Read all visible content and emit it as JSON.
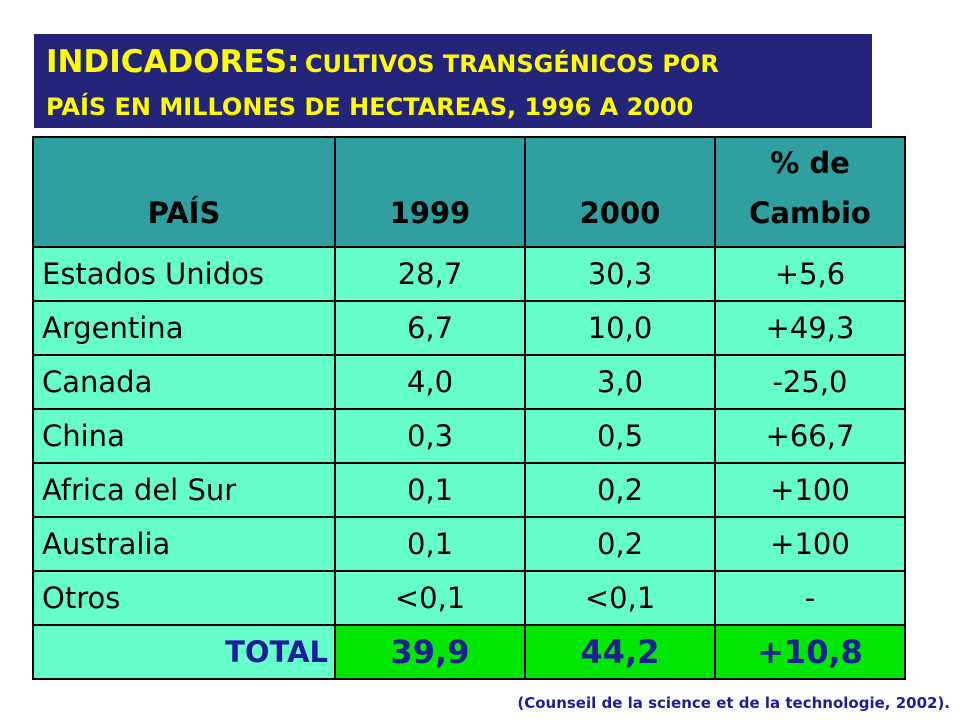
{
  "title": {
    "main": "INDICADORES:",
    "sub_line1": "CULTIVOS TRANSGÉNICOS POR",
    "sub_line2": "PAÍS EN MILLONES DE HECTAREAS, 1996 A 2000"
  },
  "colors": {
    "title_bg": "#24247a",
    "title_text": "#ffff00",
    "header_bg": "#2f9f9f",
    "row_bg": "#66ffcc",
    "total_bg": "#00e600",
    "total_text": "#1e1e96"
  },
  "table": {
    "headers": {
      "country": "PAÍS",
      "y1999": "1999",
      "y2000": "2000",
      "change_line1": "% de",
      "change_line2": "Cambio"
    },
    "rows": [
      {
        "country": "Estados Unidos",
        "y1999": "28,7",
        "y2000": "30,3",
        "change": "+5,6"
      },
      {
        "country": "Argentina",
        "y1999": "6,7",
        "y2000": "10,0",
        "change": "+49,3"
      },
      {
        "country": "Canada",
        "y1999": "4,0",
        "y2000": "3,0",
        "change": "-25,0"
      },
      {
        "country": "China",
        "y1999": "0,3",
        "y2000": "0,5",
        "change": "+66,7"
      },
      {
        "country": "Africa del Sur",
        "y1999": "0,1",
        "y2000": "0,2",
        "change": "+100"
      },
      {
        "country": "Australia",
        "y1999": "0,1",
        "y2000": "0,2",
        "change": "+100"
      },
      {
        "country": "Otros",
        "y1999": "<0,1",
        "y2000": "<0,1",
        "change": "-"
      }
    ],
    "total": {
      "label": "TOTAL",
      "y1999": "39,9",
      "y2000": "44,2",
      "change": "+10,8"
    }
  },
  "source": "(Counseil de la science et de la technologie, 2002)."
}
